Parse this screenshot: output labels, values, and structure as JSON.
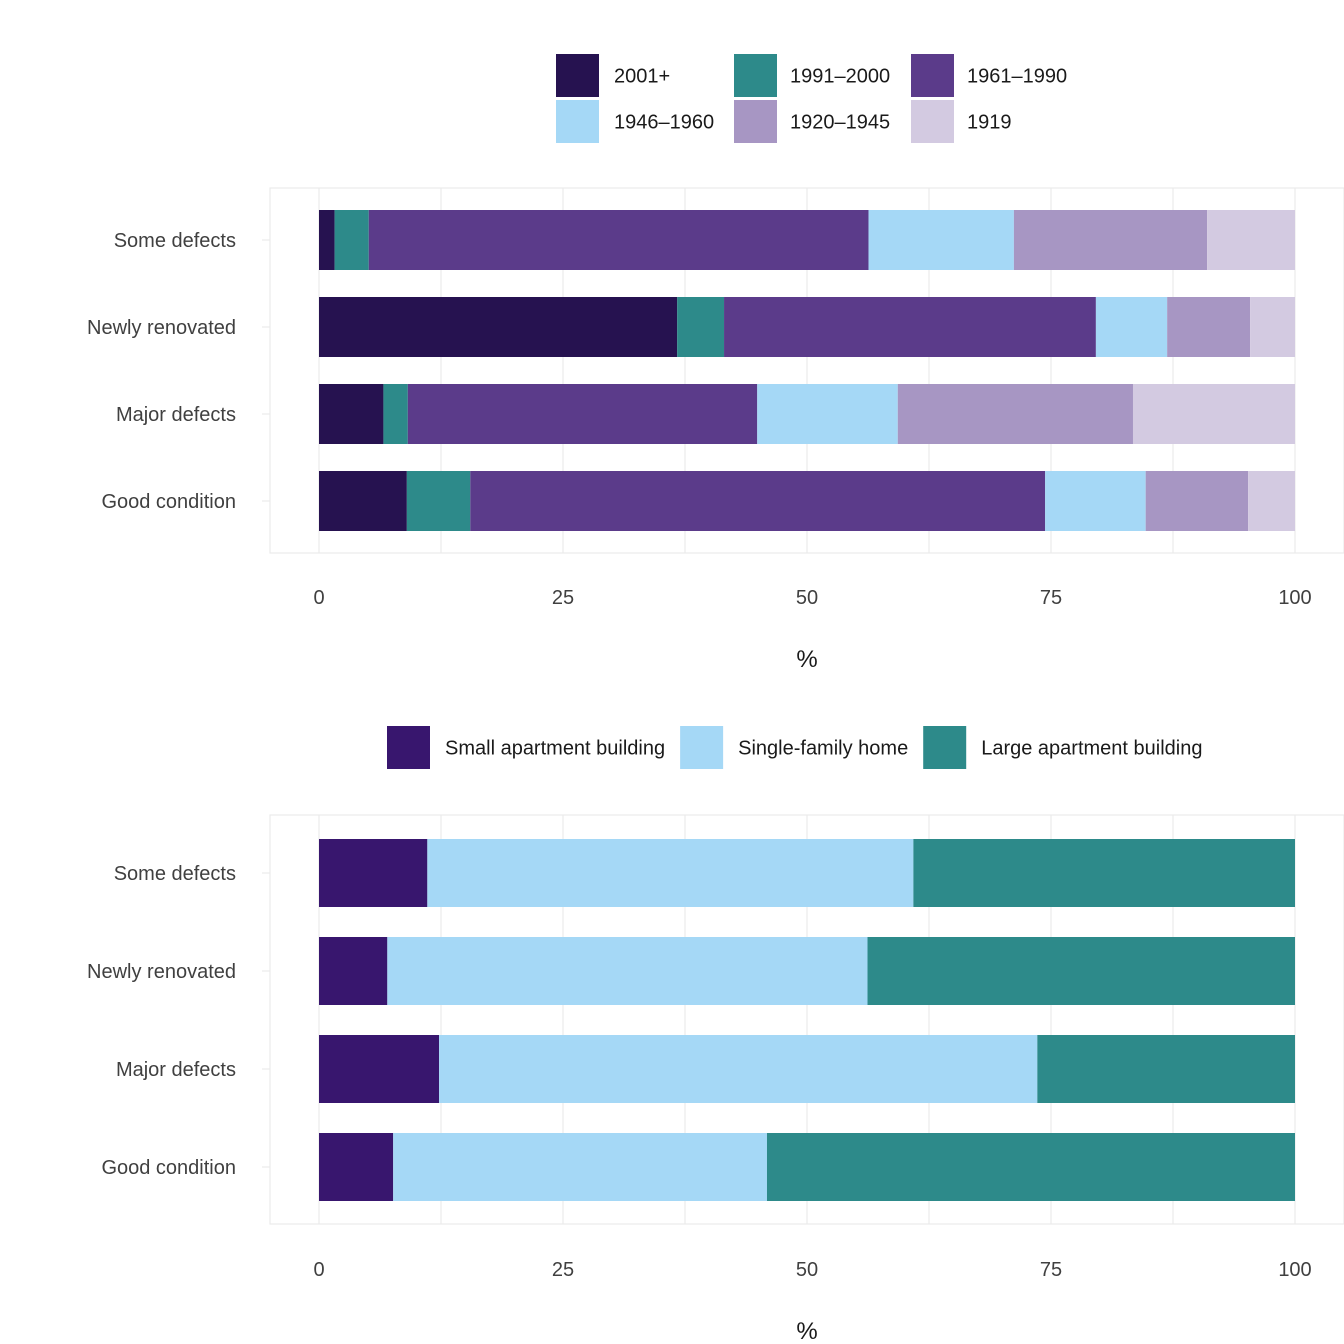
{
  "chart_data": [
    {
      "type": "bar",
      "orientation": "horizontal",
      "stacked": true,
      "title": "",
      "xlabel": "%",
      "ylabel": "",
      "xlim": [
        0,
        100
      ],
      "x_ticks": [
        "0",
        "25",
        "50",
        "75",
        "100"
      ],
      "legend_position": "top",
      "grid": true,
      "categories": [
        "Some defects",
        "Newly renovated",
        "Major defects",
        "Good condition"
      ],
      "series": [
        {
          "name": "2001+",
          "color": "#261250",
          "values": [
            1.6,
            36.7,
            6.6,
            9.0
          ]
        },
        {
          "name": "1991–2000",
          "color": "#2d8a8a",
          "values": [
            3.5,
            4.8,
            2.5,
            6.5
          ]
        },
        {
          "name": "1961–1990",
          "color": "#5b3b8a",
          "values": [
            51.2,
            38.1,
            35.8,
            58.9
          ]
        },
        {
          "name": "1946–1960",
          "color": "#a5d8f6",
          "values": [
            14.9,
            7.3,
            14.4,
            10.3
          ]
        },
        {
          "name": "1920–1945",
          "color": "#a796c3",
          "values": [
            19.8,
            8.5,
            24.1,
            10.5
          ]
        },
        {
          "name": "1919",
          "color": "#d3cae1",
          "values": [
            9.0,
            4.6,
            16.6,
            4.8
          ]
        }
      ]
    },
    {
      "type": "bar",
      "orientation": "horizontal",
      "stacked": true,
      "title": "",
      "xlabel": "%",
      "ylabel": "",
      "xlim": [
        0,
        100
      ],
      "x_ticks": [
        "0",
        "25",
        "50",
        "75",
        "100"
      ],
      "legend_position": "top",
      "grid": true,
      "categories": [
        "Some defects",
        "Newly renovated",
        "Major defects",
        "Good condition"
      ],
      "series": [
        {
          "name": "Small apartment building",
          "color": "#38166e",
          "values": [
            11.1,
            7.0,
            12.3,
            7.6
          ]
        },
        {
          "name": "Single-family home",
          "color": "#a5d8f6",
          "values": [
            49.8,
            49.2,
            61.3,
            38.3
          ]
        },
        {
          "name": "Large apartment building",
          "color": "#2d8a8a",
          "values": [
            39.1,
            43.8,
            26.4,
            54.1
          ]
        }
      ]
    }
  ]
}
